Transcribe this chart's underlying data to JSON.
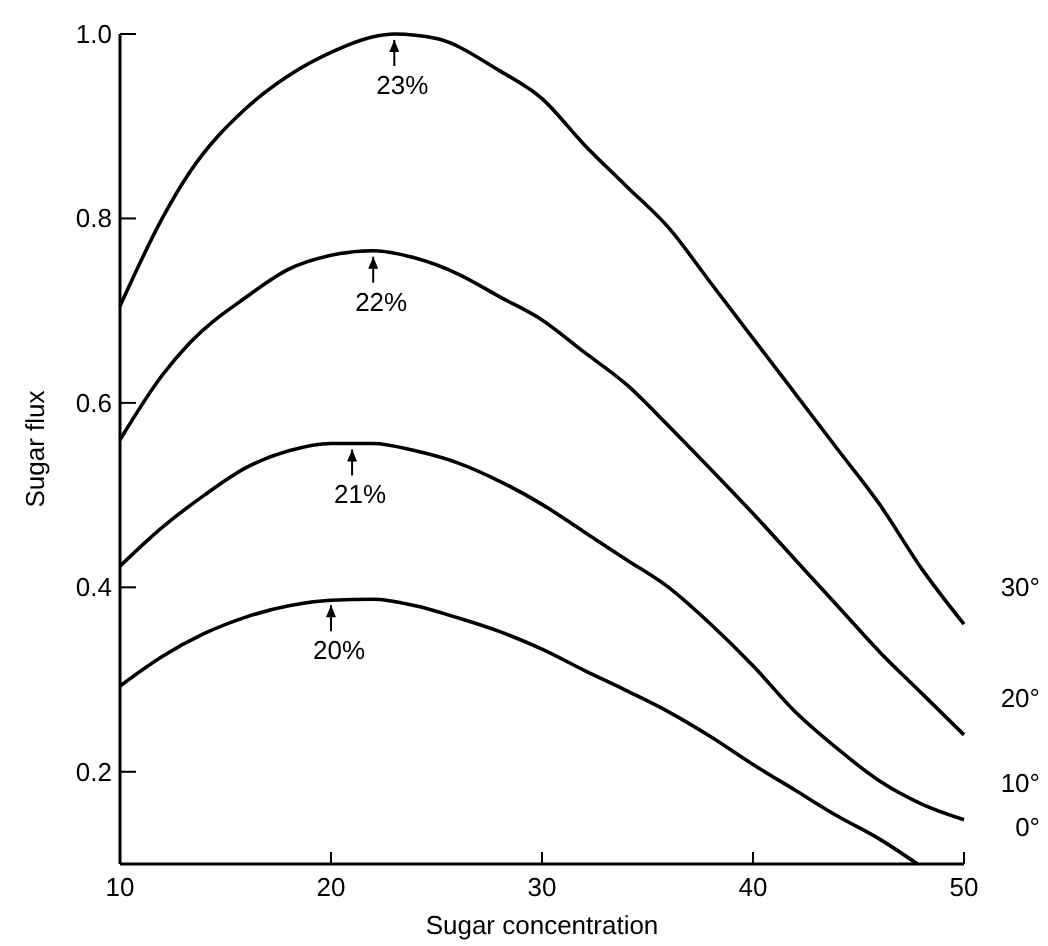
{
  "chart_data": {
    "type": "line",
    "xlabel": "Sugar concentration",
    "ylabel": "Sugar flux",
    "xlim": [
      10,
      50
    ],
    "xticks": [
      10,
      20,
      30,
      40,
      50
    ],
    "ylim": [
      0.1,
      1.0
    ],
    "yticks": [
      0.2,
      0.4,
      0.6,
      0.8,
      {
        "value": 1,
        "label": "1.0"
      }
    ],
    "grid": false,
    "marker": "none",
    "line_style": "solid",
    "series": [
      {
        "name": "30°",
        "color": "#000000",
        "x": [
          10,
          12,
          13.3,
          16,
          18,
          20,
          22,
          23,
          25,
          28,
          30,
          32,
          34,
          36,
          38,
          40,
          42,
          44,
          46,
          48,
          50
        ],
        "values": [
          0.705,
          0.8,
          0.85,
          0.92,
          0.955,
          0.98,
          0.997,
          1.0,
          0.995,
          0.96,
          0.93,
          0.88,
          0.835,
          0.79,
          0.73,
          0.67,
          0.61,
          0.55,
          0.49,
          0.42,
          0.36
        ]
      },
      {
        "name": "20°",
        "color": "#000000",
        "x": [
          10,
          12,
          13.3,
          16,
          18,
          20,
          22,
          24,
          26,
          28,
          30,
          32,
          34,
          36,
          38,
          40,
          42,
          44,
          46,
          48,
          50
        ],
        "values": [
          0.56,
          0.63,
          0.665,
          0.715,
          0.745,
          0.76,
          0.765,
          0.757,
          0.74,
          0.715,
          0.69,
          0.655,
          0.62,
          0.575,
          0.528,
          0.48,
          0.43,
          0.38,
          0.33,
          0.285,
          0.24
        ]
      },
      {
        "name": "10°",
        "color": "#000000",
        "x": [
          10,
          12,
          14,
          16,
          18,
          20,
          22,
          24,
          26,
          28,
          30,
          32,
          34,
          36,
          38,
          40,
          42,
          44,
          46,
          48,
          50
        ],
        "values": [
          0.423,
          0.465,
          0.5,
          0.53,
          0.548,
          0.556,
          0.556,
          0.548,
          0.535,
          0.515,
          0.49,
          0.46,
          0.43,
          0.4,
          0.36,
          0.315,
          0.265,
          0.225,
          0.19,
          0.165,
          0.148
        ]
      },
      {
        "name": "0°",
        "color": "#000000",
        "x": [
          10,
          12,
          14,
          16,
          18,
          20,
          22,
          24,
          26,
          28,
          30,
          32,
          34,
          36,
          38,
          40,
          42,
          44,
          46,
          47.8
        ],
        "values": [
          0.293,
          0.325,
          0.35,
          0.368,
          0.38,
          0.386,
          0.387,
          0.38,
          0.367,
          0.352,
          0.333,
          0.31,
          0.288,
          0.265,
          0.238,
          0.208,
          0.18,
          0.152,
          0.127,
          0.1
        ]
      }
    ],
    "annotations": [
      {
        "text": "23%",
        "x": 23,
        "y": 1.0
      },
      {
        "text": "22%",
        "x": 22,
        "y": 0.765
      },
      {
        "text": "21%",
        "x": 21,
        "y": 0.556
      },
      {
        "text": "20%",
        "x": 20,
        "y": 0.387
      }
    ]
  }
}
